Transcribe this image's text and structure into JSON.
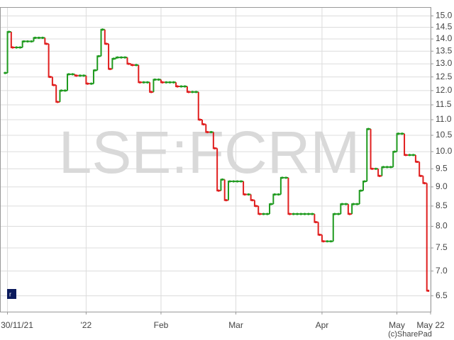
{
  "chart_data": {
    "type": "step",
    "watermark": "LSE:FCRM",
    "credit": "(c)SharePad",
    "log_scale": true,
    "grid": true,
    "up_color": "#1f9a1f",
    "down_color": "#e01f1f",
    "x": [
      1,
      2,
      3,
      4,
      5,
      6,
      7,
      8,
      9,
      10,
      11,
      12,
      13,
      14,
      15,
      16,
      17,
      18,
      19,
      20,
      21,
      22,
      23,
      24,
      25,
      26,
      27,
      28,
      29,
      30,
      31,
      32,
      33,
      34,
      35,
      36,
      37,
      38,
      39,
      40,
      41,
      42,
      43,
      44,
      45,
      46,
      47,
      48,
      49,
      50,
      51,
      52,
      53,
      54,
      55,
      56,
      57,
      58,
      59,
      60,
      61,
      62,
      63,
      64,
      65,
      66,
      67,
      68,
      69,
      70,
      71,
      72,
      73,
      74,
      75,
      76,
      77,
      78,
      79,
      80,
      81,
      82,
      83,
      84,
      85,
      86,
      87,
      88,
      89,
      90,
      91,
      92,
      93,
      94,
      95,
      96,
      97,
      98,
      99,
      100,
      101,
      102,
      103,
      104,
      105,
      106,
      107,
      108,
      109,
      110,
      111,
      112,
      113,
      114
    ],
    "values": [
      12.65,
      14.3,
      13.65,
      13.65,
      13.65,
      13.9,
      13.9,
      13.9,
      14.05,
      14.05,
      14.05,
      13.8,
      12.5,
      12.2,
      11.6,
      12.0,
      12.0,
      12.6,
      12.6,
      12.55,
      12.55,
      12.55,
      12.25,
      12.25,
      12.75,
      13.3,
      14.4,
      13.8,
      12.8,
      13.2,
      13.25,
      13.25,
      13.25,
      13.0,
      12.95,
      12.95,
      12.3,
      12.3,
      12.3,
      11.95,
      12.4,
      12.4,
      12.3,
      12.3,
      12.3,
      12.3,
      12.15,
      12.15,
      12.15,
      11.95,
      11.95,
      11.95,
      11.0,
      10.85,
      10.6,
      10.6,
      10.1,
      8.9,
      9.2,
      8.65,
      9.15,
      9.15,
      9.15,
      9.15,
      8.8,
      8.8,
      8.65,
      8.5,
      8.3,
      8.3,
      8.3,
      8.55,
      8.8,
      8.8,
      9.25,
      9.25,
      8.3,
      8.3,
      8.3,
      8.3,
      8.3,
      8.3,
      8.3,
      8.1,
      7.8,
      7.65,
      7.65,
      7.65,
      8.3,
      8.3,
      8.55,
      8.55,
      8.3,
      8.55,
      8.55,
      8.9,
      9.15,
      10.7,
      9.5,
      9.5,
      9.3,
      9.55,
      9.55,
      9.55,
      10.0,
      10.55,
      10.55,
      9.9,
      9.9,
      9.9,
      9.7,
      9.3,
      9.1,
      6.6
    ],
    "xlim": [
      0,
      115
    ],
    "xticks": [
      {
        "value": 2,
        "label": "30/11/21"
      },
      {
        "value": 23,
        "label": "'22"
      },
      {
        "value": 43,
        "label": "Feb"
      },
      {
        "value": 63,
        "label": "Mar"
      },
      {
        "value": 86,
        "label": "Apr"
      },
      {
        "value": 106,
        "label": "May"
      },
      {
        "value": 115,
        "label": "May 22"
      }
    ],
    "ylim": [
      6.2,
      15.4
    ],
    "yticks": [
      6.5,
      {
        "value": 7,
        "label": "7.0"
      },
      7.5,
      {
        "value": 8,
        "label": "8.0"
      },
      8.5,
      {
        "value": 9,
        "label": "9.0"
      },
      9.5,
      {
        "value": 10,
        "label": "10.0"
      },
      10.5,
      {
        "value": 11,
        "label": "11.0"
      },
      11.5,
      {
        "value": 12,
        "label": "12.0"
      },
      12.5,
      {
        "value": 13,
        "label": "13.0"
      },
      13.5,
      {
        "value": 14,
        "label": "14.0"
      },
      14.5,
      {
        "value": 15,
        "label": "15.0"
      }
    ]
  }
}
